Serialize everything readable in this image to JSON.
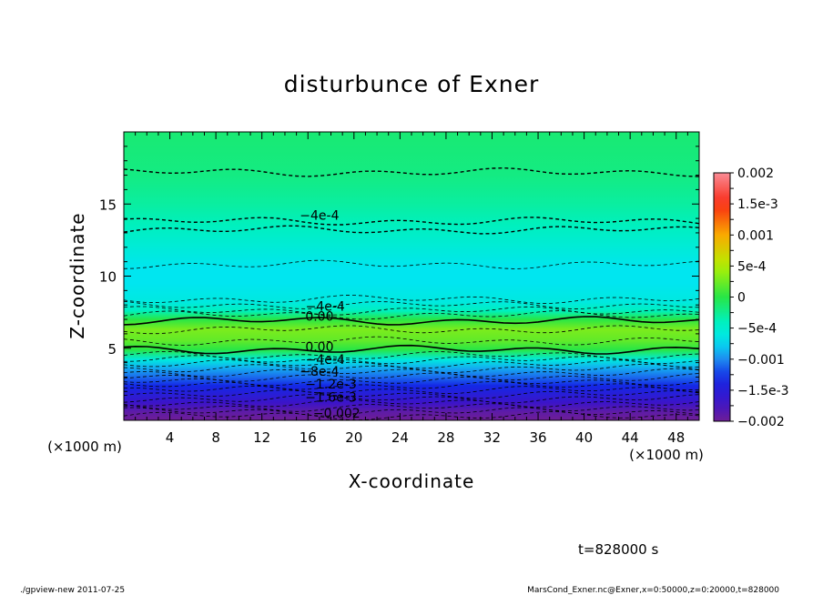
{
  "chart_data": {
    "type": "contour",
    "title": "disturbunce of Exner",
    "xlabel": "X-coordinate",
    "ylabel": "Z-coordinate",
    "x_unit": "(×1000 m)",
    "y_unit": "(×1000 m)",
    "xlim": [
      0,
      50
    ],
    "ylim": [
      0,
      20
    ],
    "xticks": [
      4,
      8,
      12,
      16,
      20,
      24,
      28,
      32,
      36,
      40,
      44,
      48
    ],
    "yticks": [
      5,
      10,
      15
    ],
    "colorbar": {
      "ticks": [
        {
          "value": 0.002,
          "label": "0.002"
        },
        {
          "value": 0.0015,
          "label": "1.5e-3"
        },
        {
          "value": 0.001,
          "label": "0.001"
        },
        {
          "value": 0.0005,
          "label": "5e-4"
        },
        {
          "value": 0,
          "label": "0"
        },
        {
          "value": -0.0005,
          "label": "−5e-4"
        },
        {
          "value": -0.001,
          "label": "−0.001"
        },
        {
          "value": -0.0015,
          "label": "−1.5e-3"
        },
        {
          "value": -0.002,
          "label": "−0.002"
        }
      ],
      "min": -0.002,
      "max": 0.002
    },
    "profile": [
      {
        "z": 0.0,
        "value": -0.0021
      },
      {
        "z": 0.6,
        "value": -0.0019
      },
      {
        "z": 1.2,
        "value": -0.0017
      },
      {
        "z": 1.8,
        "value": -0.0015
      },
      {
        "z": 2.4,
        "value": -0.0013
      },
      {
        "z": 3.0,
        "value": -0.0011
      },
      {
        "z": 3.6,
        "value": -0.0009
      },
      {
        "z": 4.2,
        "value": -0.0006
      },
      {
        "z": 4.9,
        "value": 0.0
      },
      {
        "z": 5.5,
        "value": 0.0002
      },
      {
        "z": 6.3,
        "value": 0.0003
      },
      {
        "z": 7.0,
        "value": 0.0
      },
      {
        "z": 7.6,
        "value": -0.0004
      },
      {
        "z": 8.2,
        "value": -0.0006
      },
      {
        "z": 9.5,
        "value": -0.0007
      },
      {
        "z": 10.5,
        "value": -0.0007
      },
      {
        "z": 12.0,
        "value": -0.00055
      },
      {
        "z": 13.5,
        "value": -0.0004
      },
      {
        "z": 15.0,
        "value": -0.0003
      },
      {
        "z": 17.0,
        "value": -0.0002
      },
      {
        "z": 20.0,
        "value": -0.00015
      }
    ],
    "contour_labels": [
      {
        "x": 17.0,
        "z": 13.9,
        "text": "−4e-4"
      },
      {
        "x": 17.5,
        "z": 7.6,
        "text": "−4e-4"
      },
      {
        "x": 17.0,
        "z": 6.9,
        "text": "0.00"
      },
      {
        "x": 17.0,
        "z": 4.8,
        "text": "0.00"
      },
      {
        "x": 17.5,
        "z": 3.9,
        "text": "−4e-4"
      },
      {
        "x": 17.0,
        "z": 3.1,
        "text": "−8e-4"
      },
      {
        "x": 18.0,
        "z": 2.2,
        "text": "−1.2e-3"
      },
      {
        "x": 18.0,
        "z": 1.3,
        "text": "−1.6e-3"
      },
      {
        "x": 18.5,
        "z": 0.2,
        "text": "−0.002"
      }
    ]
  },
  "footer": {
    "time_label": "t=828000 s",
    "left_note": "./gpview-new  2011-07-25",
    "right_note": "MarsCond_Exner.nc@Exner,x=0:50000,z=0:20000,t=828000"
  }
}
